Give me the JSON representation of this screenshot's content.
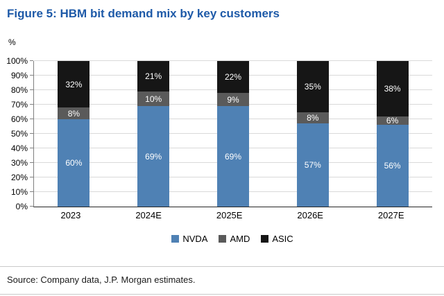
{
  "title": "Figure 5: HBM bit demand mix by key customers",
  "source": "Source: Company data, J.P. Morgan estimates.",
  "colors": {
    "title": "#1e5aa8",
    "nvda": "#4f81b4",
    "amd": "#5a5a5a",
    "asic": "#161616",
    "gridline": "#d9d9d9"
  },
  "chart_data": {
    "type": "bar",
    "stacked": true,
    "title": "Figure 5: HBM bit demand mix by key customers",
    "categories": [
      "2023",
      "2024E",
      "2025E",
      "2026E",
      "2027E"
    ],
    "series": [
      {
        "name": "NVDA",
        "color": "#4f81b4",
        "values": [
          60,
          69,
          69,
          57,
          56
        ]
      },
      {
        "name": "AMD",
        "color": "#5a5a5a",
        "values": [
          8,
          10,
          9,
          8,
          6
        ]
      },
      {
        "name": "ASIC",
        "color": "#161616",
        "values": [
          32,
          21,
          22,
          35,
          38
        ]
      }
    ],
    "xlabel": "",
    "ylabel": "%",
    "ylim": [
      0,
      100
    ],
    "ytick_step": 10,
    "ytick_labels": [
      "0%",
      "10%",
      "20%",
      "30%",
      "40%",
      "50%",
      "60%",
      "70%",
      "80%",
      "90%",
      "100%"
    ],
    "value_label_suffix": "%",
    "grid": true,
    "legend_position": "bottom"
  }
}
